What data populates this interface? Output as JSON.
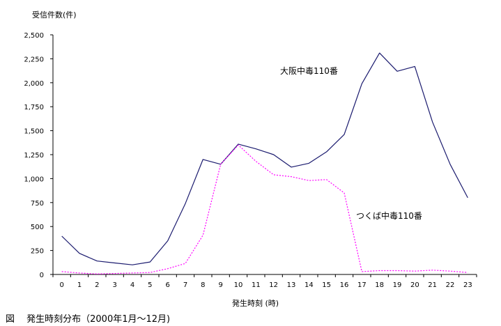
{
  "caption": "図　 発生時刻分布（2000年1月～12月)",
  "chart_data": {
    "type": "line",
    "ylabel": "受信件数(件)",
    "xlabel": "発生時刻 (時)",
    "x": [
      0,
      1,
      2,
      3,
      4,
      5,
      6,
      7,
      8,
      9,
      10,
      11,
      12,
      13,
      14,
      15,
      16,
      17,
      18,
      19,
      20,
      21,
      22,
      23
    ],
    "ylim": [
      0,
      2500
    ],
    "yticks": [
      0,
      250,
      500,
      750,
      1000,
      1250,
      1500,
      1750,
      2000,
      2250,
      2500
    ],
    "ytick_labels": [
      "0",
      "250",
      "500",
      "750",
      "1,000",
      "1,250",
      "1,500",
      "1,750",
      "2,000",
      "2,250",
      "2,500"
    ],
    "grid": false,
    "series": [
      {
        "name": "大阪中毒110番",
        "color": "#1a1a6e",
        "style": "solid",
        "values": [
          400,
          220,
          140,
          120,
          100,
          130,
          350,
          740,
          1200,
          1150,
          1360,
          1310,
          1250,
          1120,
          1160,
          1280,
          1460,
          1990,
          2310,
          2120,
          2170,
          1590,
          1150,
          800
        ]
      },
      {
        "name": "つくば中毒110番",
        "color": "#ff00ff",
        "style": "dashed",
        "values": [
          30,
          15,
          5,
          10,
          15,
          20,
          60,
          115,
          410,
          1150,
          1350,
          1180,
          1040,
          1020,
          980,
          990,
          850,
          30,
          40,
          40,
          35,
          45,
          35,
          20
        ]
      }
    ]
  }
}
